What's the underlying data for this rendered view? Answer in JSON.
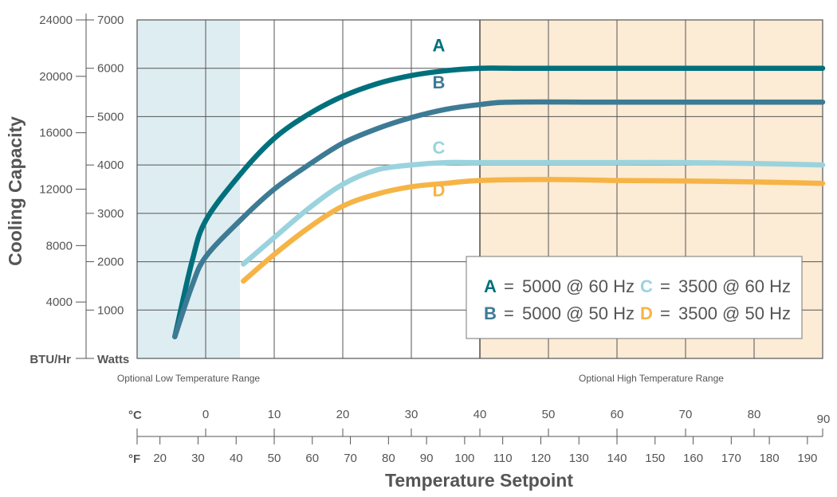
{
  "chart_data": {
    "type": "line",
    "xlabel": "Temperature Setpoint",
    "ylabel": "Cooling Capacity",
    "celsius_unit": "°C",
    "fahrenheit_unit": "°F",
    "btu_unit": "BTU/Hr",
    "watts_unit": "Watts",
    "xlim_c": [
      -10,
      90
    ],
    "ylim_watts": [
      0,
      7000
    ],
    "ylim_btu": [
      0,
      24000
    ],
    "celsius_ticks": [
      "0",
      "10",
      "20",
      "30",
      "40",
      "50",
      "60",
      "70",
      "80",
      "90"
    ],
    "fahrenheit_ticks": [
      "20",
      "30",
      "40",
      "50",
      "60",
      "70",
      "80",
      "90",
      "100",
      "110",
      "120",
      "130",
      "140",
      "150",
      "160",
      "170",
      "180",
      "190"
    ],
    "watts_ticks": [
      "1000",
      "2000",
      "3000",
      "4000",
      "5000",
      "6000",
      "7000"
    ],
    "btu_ticks": [
      "4000",
      "8000",
      "12000",
      "16000",
      "20000",
      "24000"
    ],
    "shaded_regions": [
      {
        "label": "Optional Low Temperature Range",
        "x_start": -10,
        "x_end": 5,
        "color": "#deedf1"
      },
      {
        "label": "Optional High Temperature Range",
        "x_start": 40,
        "x_end": 90,
        "color": "#fcebd5"
      }
    ],
    "series": [
      {
        "name": "A",
        "label": "5000 @ 60 Hz",
        "color": "#00707d",
        "x": [
          -4.5,
          -2,
          0,
          5,
          10,
          15,
          20,
          25,
          30,
          35,
          40,
          45,
          60,
          90
        ],
        "y": [
          450,
          2000,
          2850,
          3800,
          4550,
          5050,
          5420,
          5680,
          5850,
          5950,
          6000,
          6000,
          6000,
          6000
        ]
      },
      {
        "name": "B",
        "label": "5000 @ 50 Hz",
        "color": "#3d7b95",
        "x": [
          -4.5,
          -2,
          0,
          5,
          10,
          15,
          20,
          25,
          30,
          35,
          40,
          45,
          60,
          90
        ],
        "y": [
          450,
          1500,
          2100,
          2850,
          3500,
          4000,
          4450,
          4750,
          4980,
          5150,
          5250,
          5300,
          5300,
          5300
        ]
      },
      {
        "name": "C",
        "label": "3500 @ 60 Hz",
        "color": "#9ad3de",
        "x": [
          5.5,
          10,
          15,
          20,
          25,
          30,
          35,
          40,
          50,
          60,
          70,
          80,
          90
        ],
        "y": [
          1950,
          2500,
          3100,
          3600,
          3900,
          4000,
          4050,
          4050,
          4050,
          4050,
          4050,
          4030,
          4000
        ]
      },
      {
        "name": "D",
        "label": "3500 @ 50 Hz",
        "color": "#f6b446",
        "x": [
          5.5,
          10,
          15,
          20,
          25,
          30,
          35,
          40,
          50,
          60,
          70,
          80,
          90
        ],
        "y": [
          1600,
          2150,
          2700,
          3150,
          3400,
          3550,
          3620,
          3680,
          3700,
          3680,
          3670,
          3650,
          3620
        ]
      }
    ],
    "legend": {
      "placement": "bottom-right",
      "separator": "="
    }
  }
}
